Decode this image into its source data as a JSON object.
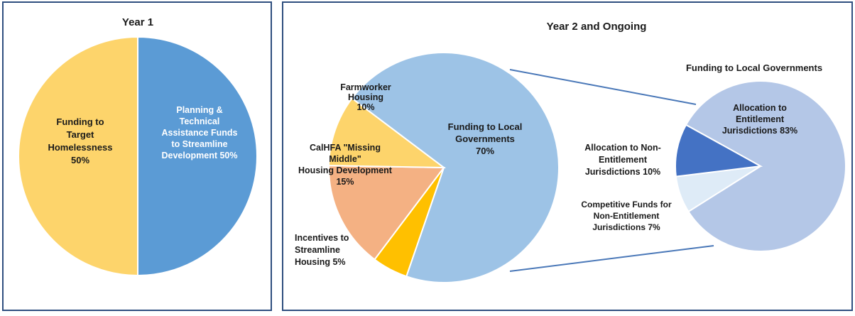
{
  "chart_data": [
    {
      "type": "pie",
      "title": "Year 1",
      "slices": [
        {
          "label_lines": [
            "Planning &",
            "Technical",
            "Assistance Funds",
            "to Streamline",
            "Development 50%"
          ],
          "value": 50,
          "color": "#5b9bd5",
          "text_color": "#ffffff"
        },
        {
          "label_lines": [
            "Funding to",
            "Target",
            "Homelessness",
            "50%"
          ],
          "value": 50,
          "color": "#fdd46b",
          "text_color": "#1a1a1a"
        }
      ]
    },
    {
      "type": "pie",
      "title": "Year 2 and Ongoing",
      "slices": [
        {
          "label_lines": [
            "Funding to Local",
            "Governments",
            "70%"
          ],
          "value": 70,
          "color": "#9dc3e6",
          "text_color": "#1a1a1a"
        },
        {
          "label_lines": [
            "Incentives to",
            "Streamline",
            "Housing 5%"
          ],
          "value": 5,
          "color": "#ffc000",
          "text_color": "#1a1a1a"
        },
        {
          "label_lines": [
            "CalHFA \"Missing",
            "Middle\"",
            "Housing Development",
            "15%"
          ],
          "value": 15,
          "color": "#f4b183",
          "text_color": "#1a1a1a"
        },
        {
          "label_lines": [
            "Farmworker",
            "Housing",
            "10%"
          ],
          "value": 10,
          "color": "#fdd46b",
          "text_color": "#1a1a1a"
        }
      ]
    },
    {
      "type": "pie",
      "title": "Funding to Local Governments",
      "slices": [
        {
          "label_lines": [
            "Allocation to",
            "Entitlement",
            "Jurisdictions 83%"
          ],
          "value": 83,
          "color": "#b4c7e7",
          "text_color": "#1a1a1a"
        },
        {
          "label_lines": [
            "Competitive Funds for",
            "Non-Entitlement",
            "Jurisdictions 7%"
          ],
          "value": 7,
          "color": "#deebf7",
          "text_color": "#1a1a1a"
        },
        {
          "label_lines": [
            "Allocation to Non-",
            "Entitlement",
            "Jurisdictions 10%"
          ],
          "value": 10,
          "color": "#4472c4",
          "text_color": "#1a1a1a"
        }
      ]
    }
  ]
}
